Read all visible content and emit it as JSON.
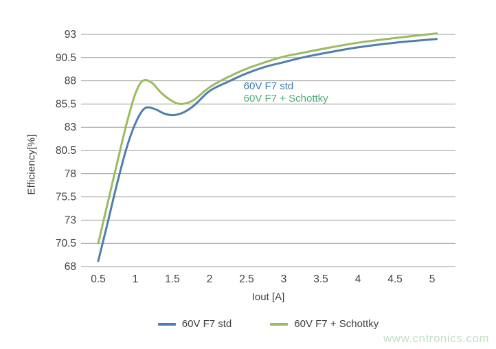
{
  "watermark": {
    "text": "www.cntronics.com",
    "color": "#c2e0c6"
  },
  "chart_data": {
    "type": "line",
    "title": "",
    "xlabel": "Iout [A]",
    "ylabel": "Efficiency[%]",
    "xticks": [
      0.5,
      1,
      1.5,
      2,
      2.5,
      3,
      3.5,
      4,
      4.5,
      5
    ],
    "yticks": [
      68,
      70.5,
      73,
      75.5,
      78,
      80.5,
      83,
      85.5,
      88,
      90.5,
      93
    ],
    "xlim": [
      0.27,
      5.32
    ],
    "ylim": [
      68,
      93
    ],
    "grid": "horizontal-only",
    "grid_color": "#9a9a9a",
    "tick_color": "#3f3f3f",
    "legend_position": "bottom",
    "series": [
      {
        "name": "60V F7 std",
        "color": "#4e7fab",
        "x": [
          0.5,
          0.62,
          0.75,
          0.88,
          1.0,
          1.12,
          1.25,
          1.38,
          1.5,
          1.65,
          1.8,
          2.0,
          2.25,
          2.5,
          2.75,
          3.0,
          3.25,
          3.5,
          4.0,
          4.5,
          5.06
        ],
        "y": [
          68.6,
          72.5,
          76.8,
          80.7,
          83.4,
          85.0,
          85.0,
          84.5,
          84.3,
          84.6,
          85.4,
          86.9,
          87.9,
          88.8,
          89.5,
          90.0,
          90.5,
          90.9,
          91.6,
          92.1,
          92.5
        ]
      },
      {
        "name": "60V F7 + Schottky",
        "color": "#9cba5e",
        "x": [
          0.5,
          0.62,
          0.75,
          0.88,
          1.0,
          1.1,
          1.22,
          1.35,
          1.5,
          1.62,
          1.78,
          2.0,
          2.25,
          2.5,
          2.75,
          3.0,
          3.25,
          3.5,
          4.0,
          4.5,
          5.06
        ],
        "y": [
          70.5,
          74.6,
          79.0,
          83.3,
          86.6,
          88.0,
          87.8,
          86.7,
          85.8,
          85.5,
          85.9,
          87.3,
          88.4,
          89.3,
          90.0,
          90.6,
          91.0,
          91.4,
          92.1,
          92.6,
          93.1
        ]
      }
    ],
    "annotations": [
      {
        "text": "60V F7 std",
        "color": "#3b79ad",
        "x": 2.46,
        "y": 87.4
      },
      {
        "text": "60V F7 + Schottky",
        "color": "#4aae78",
        "x": 2.46,
        "y": 86.05
      }
    ]
  }
}
